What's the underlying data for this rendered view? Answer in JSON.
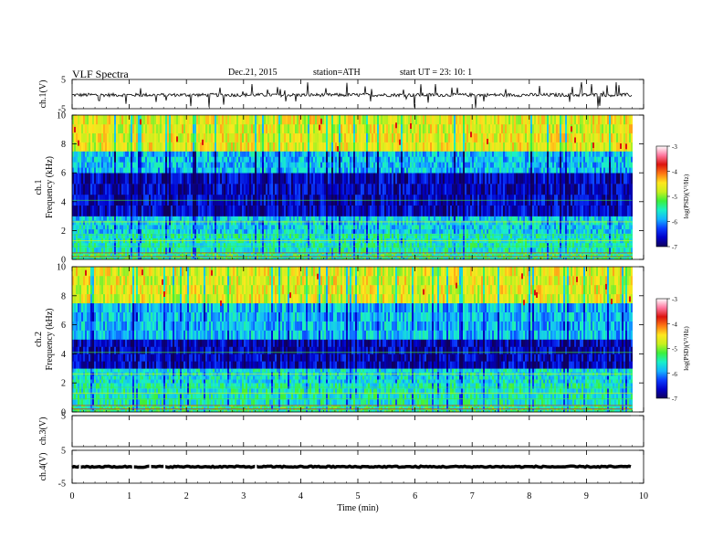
{
  "header": {
    "title": "VLF Spectra",
    "date": "Dec.21, 2015",
    "station": "station=ATH",
    "start_ut": "start  UT  =   23: 10: 1"
  },
  "chart_data": [
    {
      "type": "line",
      "name": "ch1-waveform",
      "ylabel": "ch.1(V)",
      "ylim": [
        -5,
        5
      ],
      "yticks": [
        5,
        -5
      ],
      "xlim": [
        0,
        10
      ],
      "baseline": -0.3,
      "noise_amplitude": 1.2
    },
    {
      "type": "heatmap",
      "name": "ch1-spectrogram",
      "ylabel": "ch.1 Frequency (kHz)",
      "ylim": [
        0,
        10
      ],
      "yticks": [
        0,
        2,
        4,
        6,
        8,
        10
      ],
      "xlim": [
        0,
        10
      ],
      "data_end_min": 9.8,
      "bands_khz": [
        {
          "from": 0,
          "to": 0.5,
          "level": -5.2
        },
        {
          "from": 0.5,
          "to": 1.8,
          "level": -5.4
        },
        {
          "from": 1.8,
          "to": 3.0,
          "level": -5.6
        },
        {
          "from": 3.0,
          "to": 6.0,
          "level": -6.6
        },
        {
          "from": 6.0,
          "to": 7.5,
          "level": -5.7
        },
        {
          "from": 7.5,
          "to": 10,
          "level": -4.4
        }
      ],
      "colorbar": {
        "label": "log(PSD)(V²/Hz)",
        "range": [
          -7,
          -3
        ],
        "ticks": [
          -3,
          -4,
          -5,
          -6,
          -7
        ]
      }
    },
    {
      "type": "heatmap",
      "name": "ch2-spectrogram",
      "ylabel": "ch.2 Frequency (kHz)",
      "ylim": [
        0,
        10
      ],
      "yticks": [
        0,
        2,
        4,
        6,
        8,
        10
      ],
      "xlim": [
        0,
        10
      ],
      "data_end_min": 9.8,
      "bands_khz": [
        {
          "from": 0,
          "to": 0.5,
          "level": -5.2
        },
        {
          "from": 0.5,
          "to": 2.0,
          "level": -5.4
        },
        {
          "from": 2.0,
          "to": 3.0,
          "level": -5.5
        },
        {
          "from": 3.0,
          "to": 5.0,
          "level": -6.6
        },
        {
          "from": 5.0,
          "to": 7.5,
          "level": -5.7
        },
        {
          "from": 7.5,
          "to": 10,
          "level": -4.4
        }
      ],
      "colorbar": {
        "label": "log(PSD)(V²/Hz)",
        "range": [
          -7,
          -3
        ],
        "ticks": [
          -3,
          -4,
          -5,
          -6,
          -7
        ]
      }
    },
    {
      "type": "line",
      "name": "ch3-waveform",
      "ylabel": "ch.3(V)",
      "ylim": [
        -5,
        5
      ],
      "yticks": [
        5
      ],
      "xlim": [
        0,
        10
      ],
      "baseline": 5,
      "noise_amplitude": 0
    },
    {
      "type": "line",
      "name": "ch4-waveform",
      "ylabel": "ch.4(V)",
      "ylim": [
        -5,
        5
      ],
      "yticks": [
        5,
        -5
      ],
      "xlim": [
        0,
        10
      ],
      "baseline": 0,
      "noise_amplitude": 0.4
    }
  ],
  "xaxis": {
    "label": "Time  (min)",
    "ticks": [
      0,
      1,
      2,
      3,
      4,
      5,
      6,
      7,
      8,
      9,
      10
    ]
  },
  "colors": {
    "colormap": [
      "#10005a",
      "#0000c8",
      "#0a3cff",
      "#14b4ff",
      "#19f0c8",
      "#3cf03c",
      "#c8f01e",
      "#ffe61e",
      "#ff7814",
      "#dc140f",
      "#ff78a0",
      "#ffffff"
    ]
  }
}
